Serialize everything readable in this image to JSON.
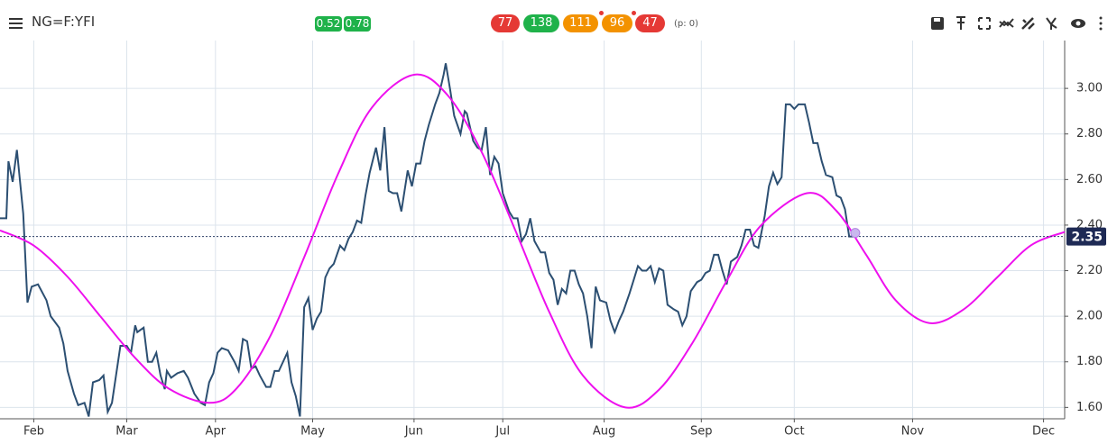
{
  "toolbar": {
    "symbol": "NG=F:YFI",
    "badges": [
      "0.52",
      "0.78"
    ],
    "counts": [
      "77",
      "138",
      "111",
      "96",
      "47"
    ],
    "p_label": "(p: 0)"
  },
  "chart_data": {
    "type": "line",
    "xlim": [
      0,
      252
    ],
    "xticks": [
      {
        "value": 8,
        "label": "Feb"
      },
      {
        "value": 30,
        "label": "Mar"
      },
      {
        "value": 51,
        "label": "Apr"
      },
      {
        "value": 74,
        "label": "May"
      },
      {
        "value": 98,
        "label": "Jun"
      },
      {
        "value": 119,
        "label": "Jul"
      },
      {
        "value": 143,
        "label": "Aug"
      },
      {
        "value": 166,
        "label": "Sep"
      },
      {
        "value": 188,
        "label": "Oct"
      },
      {
        "value": 216,
        "label": "Nov"
      },
      {
        "value": 247,
        "label": "Dec"
      }
    ],
    "ylim": [
      1.55,
      3.21
    ],
    "yticks": [
      {
        "value": 1.6,
        "label": "1.60"
      },
      {
        "value": 1.8,
        "label": "1.80"
      },
      {
        "value": 2.0,
        "label": "2.00"
      },
      {
        "value": 2.2,
        "label": "2.20"
      },
      {
        "value": 2.4,
        "label": "2.40"
      },
      {
        "value": 2.6,
        "label": "2.60"
      },
      {
        "value": 2.8,
        "label": "2.80"
      },
      {
        "value": 3.0,
        "label": "3.00"
      }
    ],
    "grid": true,
    "last_price": 2.35,
    "series": [
      {
        "color": "#2c4f72",
        "smooth": false,
        "x": [
          0,
          1.5,
          2,
          3,
          4,
          5.5,
          6.5,
          7.5,
          9,
          11,
          12,
          14,
          15,
          16,
          17.5,
          18.5,
          20,
          21,
          22,
          23.5,
          24.5,
          25.5,
          26.5,
          28.5,
          30,
          31,
          32,
          32.5,
          34,
          35,
          36,
          37,
          38,
          39,
          39.5,
          40.5,
          42,
          43.5,
          44.5,
          46,
          47.5,
          48.5,
          49.5,
          50.5,
          51.5,
          52.5,
          54,
          55.5,
          56.5,
          57.5,
          58.5,
          59.5,
          60.5,
          61.5,
          63,
          64,
          65,
          66,
          67,
          68,
          69,
          70,
          71,
          72,
          73,
          74,
          75,
          76,
          77,
          78,
          79,
          80.5,
          81.5,
          82.5,
          83.5,
          84.5,
          85.5,
          86.5,
          87.5,
          89,
          90,
          91,
          92,
          93,
          94,
          95,
          96.5,
          97.5,
          98.5,
          99.5,
          100.5,
          101.5,
          103,
          104,
          105,
          105.5,
          106.5,
          107.5,
          109,
          110,
          110.5,
          112,
          113,
          114,
          115,
          116,
          117,
          118,
          119,
          120.5,
          121.5,
          122.5,
          123.5,
          124.5,
          125.5,
          126.5,
          128,
          129,
          130,
          131,
          132,
          133,
          134,
          135,
          136,
          137,
          138,
          139,
          140,
          141,
          142,
          143.5,
          144.5,
          145.5,
          146.5,
          147.5,
          149,
          150,
          151,
          152,
          153,
          154,
          155,
          156,
          157,
          158,
          159.5,
          160.5,
          161.5,
          162.5,
          163.5,
          165,
          166,
          167,
          168,
          169,
          170,
          171,
          172,
          173,
          174.5,
          175.5,
          176.5,
          177.5,
          178.5,
          179.5,
          181,
          182,
          183,
          184,
          185,
          186,
          187,
          188,
          189,
          190.5,
          191.5,
          192.5,
          193.5,
          194.5,
          195.5,
          197,
          198,
          199,
          200,
          201,
          202
        ],
        "values": [
          2.43,
          2.43,
          2.68,
          2.59,
          2.73,
          2.45,
          2.06,
          2.13,
          2.14,
          2.07,
          2.0,
          1.95,
          1.88,
          1.76,
          1.66,
          1.61,
          1.62,
          1.56,
          1.71,
          1.72,
          1.74,
          1.58,
          1.62,
          1.87,
          1.87,
          1.84,
          1.96,
          1.93,
          1.95,
          1.8,
          1.8,
          1.84,
          1.74,
          1.68,
          1.76,
          1.73,
          1.75,
          1.76,
          1.73,
          1.66,
          1.62,
          1.61,
          1.71,
          1.75,
          1.84,
          1.86,
          1.85,
          1.8,
          1.76,
          1.9,
          1.89,
          1.77,
          1.78,
          1.74,
          1.69,
          1.69,
          1.76,
          1.76,
          1.8,
          1.84,
          1.71,
          1.65,
          1.56,
          2.04,
          2.08,
          1.94,
          1.99,
          2.02,
          2.17,
          2.21,
          2.23,
          2.31,
          2.29,
          2.34,
          2.37,
          2.42,
          2.41,
          2.53,
          2.63,
          2.74,
          2.64,
          2.83,
          2.55,
          2.54,
          2.54,
          2.46,
          2.64,
          2.57,
          2.67,
          2.67,
          2.77,
          2.84,
          2.93,
          2.98,
          3.06,
          3.11,
          3.0,
          2.88,
          2.8,
          2.9,
          2.89,
          2.77,
          2.74,
          2.73,
          2.83,
          2.62,
          2.7,
          2.67,
          2.54,
          2.46,
          2.43,
          2.43,
          2.33,
          2.36,
          2.43,
          2.33,
          2.28,
          2.28,
          2.19,
          2.16,
          2.05,
          2.12,
          2.1,
          2.2,
          2.2,
          2.14,
          2.1,
          2.0,
          1.86,
          2.13,
          2.07,
          2.06,
          1.98,
          1.93,
          1.98,
          2.02,
          2.1,
          2.16,
          2.22,
          2.2,
          2.2,
          2.22,
          2.15,
          2.21,
          2.2,
          2.05,
          2.03,
          2.02,
          1.96,
          2.0,
          2.11,
          2.15,
          2.16,
          2.19,
          2.2,
          2.27,
          2.27,
          2.2,
          2.14,
          2.24,
          2.26,
          2.31,
          2.38,
          2.38,
          2.31,
          2.3,
          2.44,
          2.57,
          2.63,
          2.58,
          2.61,
          2.93,
          2.93,
          2.91,
          2.93,
          2.93,
          2.85,
          2.76,
          2.76,
          2.68,
          2.62,
          2.61,
          2.53,
          2.52,
          2.47,
          2.35,
          2.35
        ]
      },
      {
        "color": "#ee10ee",
        "smooth": true,
        "x": [
          0,
          8,
          16,
          24,
          32,
          40,
          49.5,
          56,
          64,
          72,
          80,
          88,
          98,
          106,
          114,
          122,
          130,
          138,
          148,
          156,
          164,
          172,
          180,
          191,
          198,
          205,
          212,
          220,
          228,
          236,
          244,
          252
        ],
        "values": [
          2.377,
          2.31,
          2.173,
          1.994,
          1.817,
          1.682,
          1.62,
          1.683,
          1.914,
          2.259,
          2.624,
          2.915,
          3.06,
          2.969,
          2.721,
          2.376,
          2.019,
          1.739,
          1.6,
          1.678,
          1.886,
          2.155,
          2.396,
          2.54,
          2.462,
          2.27,
          2.07,
          1.97,
          2.029,
          2.17,
          2.311,
          2.37
        ]
      }
    ]
  }
}
